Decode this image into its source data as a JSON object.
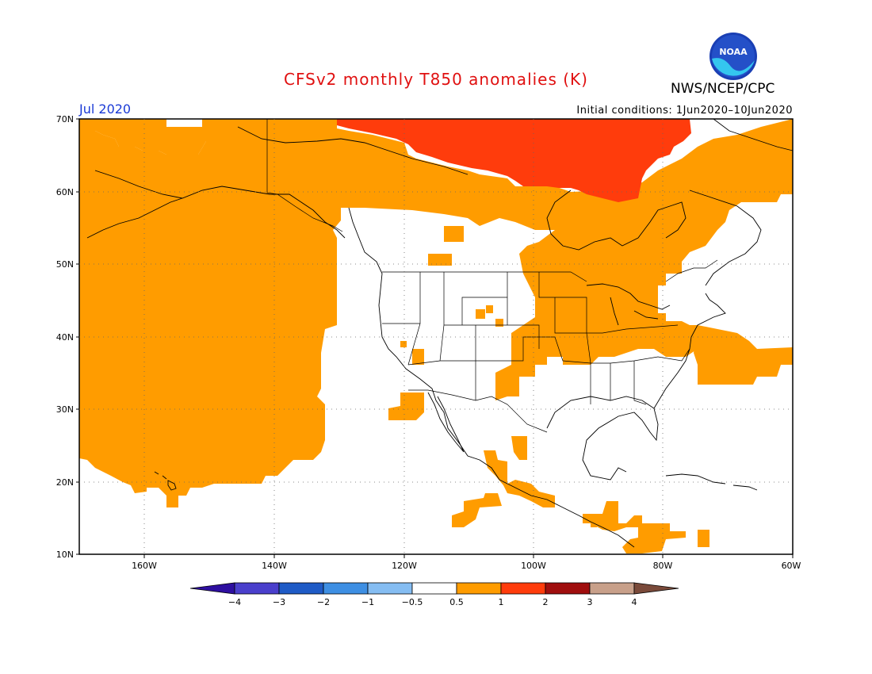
{
  "header": {
    "title": "CFSv2 monthly T850 anomalies (K)",
    "org": "NWS/NCEP/CPC",
    "month": "Jul 2020",
    "initial_conditions": "Initial conditions: 1Jun2020–10Jun2020",
    "logo_text": "NOAA"
  },
  "map": {
    "lat_labels": [
      "70N",
      "60N",
      "50N",
      "40N",
      "30N",
      "20N",
      "10N"
    ],
    "lon_labels": [
      "160W",
      "140W",
      "120W",
      "100W",
      "80W",
      "60W"
    ]
  },
  "legend": {
    "tick_labels": [
      "−4",
      "−3",
      "−2",
      "−1",
      "−0.5",
      "0.5",
      "1",
      "2",
      "3",
      "4"
    ],
    "colors": [
      "#2e0fa0",
      "#4a3fcc",
      "#1f5bc6",
      "#3e8fe3",
      "#85bdf2",
      "#ffffff",
      "#ff9c00",
      "#ff3c0c",
      "#a00e0e",
      "#c8a08a",
      "#7a4a3a"
    ]
  },
  "colors": {
    "anomaly_05_1": "#ff9c00",
    "anomaly_1_2": "#ff3c0c",
    "title": "#e01010",
    "month": "#1a3ad6"
  }
}
